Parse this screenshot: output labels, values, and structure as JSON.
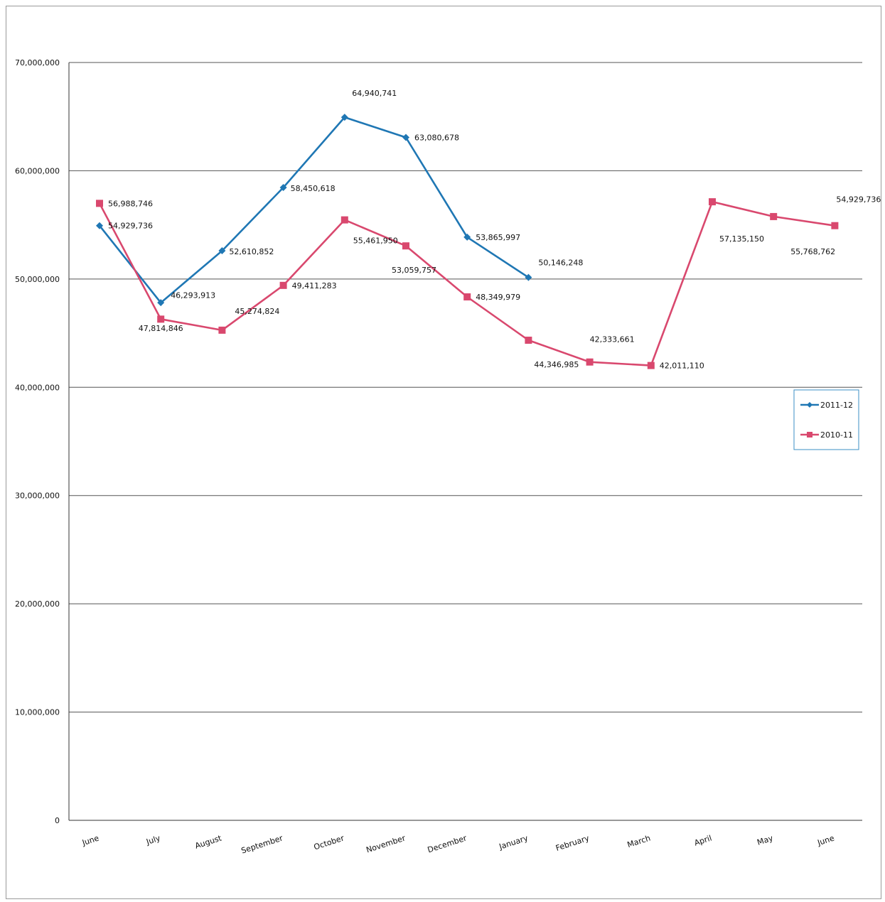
{
  "chart_data": {
    "type": "line",
    "categories": [
      "June",
      "July",
      "August",
      "September",
      "October",
      "November",
      "December",
      "January",
      "February",
      "March",
      "April",
      "May",
      "June"
    ],
    "ylim": [
      0,
      70000000
    ],
    "yticks": [
      0,
      10000000,
      20000000,
      30000000,
      40000000,
      50000000,
      60000000,
      70000000
    ],
    "ytick_labels": [
      "0",
      "10,000,000",
      "20,000,000",
      "30,000,000",
      "40,000,000",
      "50,000,000",
      "60,000,000",
      "70,000,000"
    ],
    "grid": "horizontal",
    "legend_position": "right",
    "series": [
      {
        "name": "2011-12",
        "color": "#1f77b4",
        "marker": "diamond",
        "values": [
          54929736,
          47814846,
          52610852,
          58450618,
          64940741,
          63080678,
          53865997,
          50146248,
          null,
          null,
          null,
          null,
          null
        ],
        "labels": [
          "54,929,736",
          "47,814,846",
          "52,610,852",
          "58,450,618",
          "64,940,741",
          "63,080,678",
          "53,865,997",
          "50,146,248",
          null,
          null,
          null,
          null,
          null
        ]
      },
      {
        "name": "2010-11",
        "color": "#d9486e",
        "marker": "square",
        "values": [
          56988746,
          46293913,
          45274824,
          49411283,
          55461950,
          53059757,
          48349979,
          44346985,
          42333661,
          42011110,
          57135150,
          55768762,
          54929736
        ],
        "labels": [
          "56,988,746",
          "46,293,913",
          "45,274,824",
          "49,411,283",
          "55,461,950",
          "53,059,757",
          "48,349,979",
          "44,346,985",
          "42,333,661",
          "42,011,110",
          "57,135,150",
          "55,768,762",
          "54,929,736"
        ]
      }
    ]
  }
}
